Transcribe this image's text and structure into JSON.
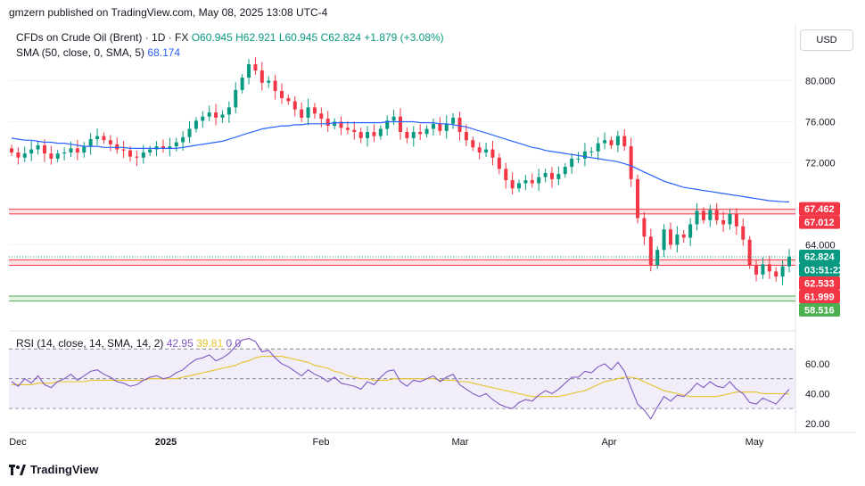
{
  "header": {
    "text": "gmzern published on TradingView.com, May 08, 2025 13:08 UTC-4"
  },
  "legend": {
    "instrument": "CFDs on Crude Oil (Brent) · 1D · FX",
    "open": "O60.945",
    "high": "H62.921",
    "low": "L60.945",
    "close": "C62.824",
    "change": "+1.879 (+3.08%)",
    "sma_label": "SMA (50, close, 0, SMA, 5)",
    "sma_value": "68.174",
    "rsi_label": "RSI (14, close, 14, SMA, 14, 2)",
    "rsi_value": "42.95",
    "rsi_ma_value": "39.81",
    "rsi_extra": "0 0"
  },
  "currency_button": "USD",
  "brand": "TradingView",
  "colors": {
    "up": "#089981",
    "down": "#f23645",
    "sma": "#2962ff",
    "rsi": "#7e57c2",
    "rsi_ma": "#e6c229",
    "resistance": "#f23645",
    "support": "#4caf50"
  },
  "chart_data": {
    "type": "candlestick",
    "y_ticks": [
      80,
      76,
      72,
      64
    ],
    "y_tick_labels": [
      "80.000",
      "76.000",
      "72.000",
      "64.000"
    ],
    "x_labels": [
      "Dec",
      "2025",
      "Feb",
      "Mar",
      "Apr",
      "May"
    ],
    "price_labels": [
      {
        "text": "67.462",
        "value": 67.462,
        "color": "#f23645"
      },
      {
        "text": "67.012",
        "value": 67.012,
        "color": "#f23645"
      },
      {
        "text": "62.824",
        "value": 62.824,
        "color": "#089981"
      },
      {
        "text": "03:51:22",
        "value": 61.9,
        "color": "#089981"
      },
      {
        "text": "62.533",
        "value": 62.533,
        "color": "#f23645"
      },
      {
        "text": "61.999",
        "value": 61.999,
        "color": "#f23645"
      },
      {
        "text": "58.516",
        "value": 58.516,
        "color": "#4caf50"
      }
    ],
    "zones": [
      {
        "from": 67.012,
        "to": 67.462,
        "color": "#f23645"
      },
      {
        "from": 61.999,
        "to": 62.533,
        "color": "#f23645"
      },
      {
        "from": 58.516,
        "to": 59.0,
        "color": "#4caf50"
      }
    ],
    "closes": [
      73.0,
      72.5,
      72.9,
      73.3,
      73.7,
      72.9,
      72.4,
      72.9,
      73.0,
      73.4,
      73.0,
      73.6,
      74.3,
      74.6,
      74.2,
      73.8,
      73.3,
      73.2,
      72.6,
      72.5,
      73.0,
      73.3,
      73.6,
      73.4,
      73.6,
      74.0,
      74.5,
      75.3,
      76.1,
      76.5,
      76.9,
      76.4,
      76.7,
      77.4,
      79.1,
      80.3,
      81.6,
      81.0,
      79.8,
      80.0,
      79.0,
      78.3,
      78.0,
      77.2,
      76.4,
      77.4,
      76.8,
      76.3,
      75.6,
      76.0,
      75.4,
      75.2,
      75.0,
      74.4,
      75.0,
      74.6,
      75.3,
      76.1,
      76.5,
      75.0,
      74.4,
      75.0,
      74.8,
      75.3,
      75.8,
      75.1,
      75.8,
      76.4,
      75.0,
      74.2,
      73.5,
      73.0,
      73.3,
      72.5,
      71.4,
      70.3,
      69.5,
      70.0,
      70.3,
      70.0,
      70.6,
      71.0,
      70.4,
      70.9,
      71.6,
      72.4,
      72.4,
      73.1,
      73.1,
      73.9,
      74.2,
      73.7,
      74.6,
      73.6,
      70.4,
      66.6,
      64.8,
      62.0,
      63.5,
      65.5,
      64.0,
      65.0,
      64.7,
      66.0,
      67.3,
      66.4,
      67.4,
      66.4,
      66.0,
      67.0,
      65.8,
      64.5,
      62.0,
      61.1,
      62.1,
      61.4,
      60.9,
      61.9,
      62.824
    ],
    "sma": [
      74.4,
      74.3,
      74.2,
      74.2,
      74.1,
      74.0,
      74.0,
      73.9,
      73.9,
      73.8,
      73.7,
      73.6,
      73.6,
      73.6,
      73.5,
      73.5,
      73.5,
      73.5,
      73.4,
      73.4,
      73.4,
      73.4,
      73.4,
      73.4,
      73.4,
      73.4,
      73.5,
      73.6,
      73.7,
      73.8,
      73.9,
      74.0,
      74.1,
      74.3,
      74.5,
      74.7,
      74.9,
      75.1,
      75.3,
      75.4,
      75.5,
      75.6,
      75.6,
      75.7,
      75.7,
      75.8,
      75.8,
      75.8,
      75.8,
      75.9,
      75.9,
      75.9,
      75.9,
      75.9,
      75.9,
      75.9,
      75.9,
      76.0,
      76.0,
      76.0,
      76.0,
      76.0,
      75.9,
      75.9,
      75.9,
      75.8,
      75.8,
      75.7,
      75.6,
      75.5,
      75.3,
      75.1,
      74.9,
      74.7,
      74.5,
      74.3,
      74.1,
      73.9,
      73.7,
      73.5,
      73.4,
      73.2,
      73.1,
      73.0,
      72.9,
      72.8,
      72.7,
      72.6,
      72.5,
      72.4,
      72.3,
      72.2,
      72.1,
      71.9,
      71.7,
      71.4,
      71.1,
      70.8,
      70.5,
      70.2,
      70.0,
      69.8,
      69.6,
      69.5,
      69.4,
      69.3,
      69.2,
      69.1,
      69.0,
      68.9,
      68.8,
      68.7,
      68.6,
      68.5,
      68.4,
      68.3,
      68.25,
      68.2,
      68.174
    ],
    "rsi": [
      48,
      45,
      50,
      47,
      52,
      46,
      44,
      48,
      50,
      53,
      49,
      52,
      55,
      56,
      53,
      51,
      48,
      47,
      45,
      46,
      49,
      51,
      52,
      50,
      51,
      54,
      56,
      60,
      63,
      64,
      66,
      62,
      64,
      67,
      72,
      76,
      77,
      75,
      68,
      69,
      64,
      60,
      58,
      55,
      52,
      56,
      53,
      51,
      48,
      51,
      47,
      46,
      45,
      43,
      48,
      46,
      51,
      55,
      56,
      48,
      45,
      49,
      48,
      50,
      52,
      48,
      51,
      53,
      46,
      43,
      40,
      38,
      40,
      36,
      33,
      31,
      30,
      34,
      36,
      35,
      39,
      42,
      40,
      43,
      47,
      51,
      51,
      55,
      54,
      58,
      60,
      56,
      61,
      55,
      44,
      33,
      29,
      23,
      31,
      38,
      35,
      39,
      38,
      42,
      47,
      44,
      48,
      45,
      44,
      48,
      43,
      40,
      34,
      33,
      37,
      35,
      33,
      38,
      42.95
    ],
    "rsi_ma": [
      46,
      46,
      46,
      46,
      47,
      47,
      47,
      48,
      48,
      48,
      48,
      48,
      49,
      49,
      49,
      49,
      49,
      49,
      49,
      49,
      49,
      50,
      50,
      50,
      50,
      50,
      51,
      52,
      53,
      54,
      55,
      56,
      57,
      58,
      59,
      61,
      62,
      64,
      65,
      65,
      65,
      65,
      64,
      63,
      62,
      61,
      59,
      58,
      57,
      55,
      54,
      52,
      51,
      50,
      50,
      49,
      49,
      49,
      50,
      50,
      50,
      50,
      50,
      50,
      50,
      49,
      49,
      49,
      48,
      48,
      47,
      46,
      45,
      44,
      43,
      42,
      41,
      40,
      39,
      38,
      38,
      38,
      38,
      38,
      39,
      40,
      41,
      42,
      44,
      46,
      48,
      49,
      50,
      51,
      51,
      50,
      48,
      46,
      44,
      42,
      41,
      40,
      39,
      38,
      38,
      38,
      38,
      38,
      39,
      40,
      41,
      41,
      41,
      41,
      40,
      40,
      40,
      39.9,
      39.81
    ],
    "rsi_ticks": [
      60,
      40,
      20
    ],
    "rsi_tick_labels": [
      "60.00",
      "40.00",
      "20.00"
    ],
    "rsi_bands": [
      70,
      50,
      30
    ]
  }
}
